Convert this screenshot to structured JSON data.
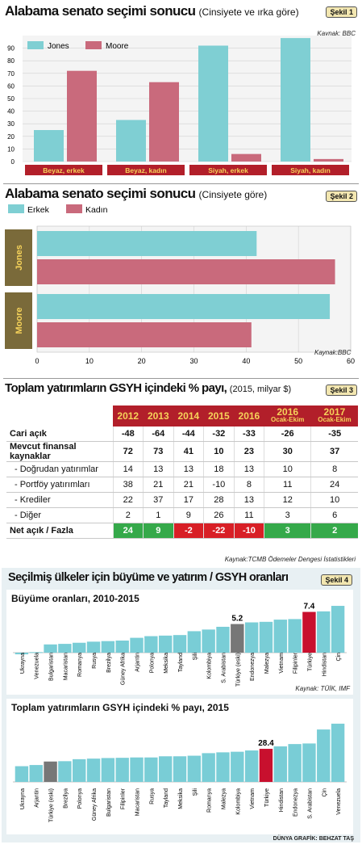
{
  "section1": {
    "title": "Alabama senato seçimi sonucu",
    "subtitle": "(Cinsiyete ve ırka göre)",
    "badge": "Şekil 1",
    "source": "Kaynak: BBC",
    "chart_data": {
      "type": "bar",
      "categories": [
        "Beyaz, erkek",
        "Beyaz, kadın",
        "Siyah, erkek",
        "Siyah, kadın"
      ],
      "series": [
        {
          "name": "Jones",
          "values": [
            25,
            33,
            92,
            98
          ],
          "color": "#7fcfd3"
        },
        {
          "name": "Moore",
          "values": [
            72,
            63,
            6,
            2
          ],
          "color": "#c96a7c"
        }
      ],
      "ylim": [
        0,
        100
      ],
      "yticks": [
        0,
        10,
        20,
        30,
        40,
        50,
        60,
        70,
        80,
        90
      ],
      "legend": "top-left"
    }
  },
  "section2": {
    "title": "Alabama senato seçimi sonucu",
    "subtitle": "(Cinsiyete göre)",
    "badge": "Şekil 2",
    "source": "Kaynak:BBC",
    "chart_data": {
      "type": "bar",
      "orientation": "horizontal",
      "categories": [
        "Jones",
        "Moore"
      ],
      "series": [
        {
          "name": "Erkek",
          "values": [
            42,
            56
          ],
          "color": "#7fcfd3"
        },
        {
          "name": "Kadın",
          "values": [
            57,
            41
          ],
          "color": "#c96a7c"
        }
      ],
      "xlim": [
        0,
        60
      ],
      "xticks": [
        0,
        10,
        20,
        30,
        40,
        50,
        60
      ],
      "legend": "top-left"
    }
  },
  "section3": {
    "title": "Toplam yatırımların GSYH içindeki % payı,",
    "subtitle": "(2015, milyar $)",
    "badge": "Şekil 3",
    "source": "Kaynak:TCMB Ödemeler Dengesi İstatistikleri",
    "chart_data": {
      "type": "table",
      "columns": [
        "2012",
        "2013",
        "2014",
        "2015",
        "2016",
        "2016",
        "2017"
      ],
      "column_notes": [
        "",
        "",
        "",
        "",
        "",
        "Ocak-Ekim",
        "Ocak-Ekim"
      ],
      "rows": [
        {
          "label": "Cari açık",
          "values": [
            "-48",
            "-64",
            "-44",
            "-32",
            "-33",
            "-26",
            "-35"
          ]
        },
        {
          "label": "Mevcut finansal kaynaklar",
          "values": [
            "72",
            "73",
            "41",
            "10",
            "23",
            "30",
            "37"
          ]
        },
        {
          "label": "- Doğrudan yatırımlar",
          "values": [
            "14",
            "13",
            "13",
            "18",
            "13",
            "10",
            "8"
          ]
        },
        {
          "label": "- Portföy yatırımları",
          "values": [
            "38",
            "21",
            "21",
            "-10",
            "8",
            "11",
            "24"
          ]
        },
        {
          "label": "- Krediler",
          "values": [
            "22",
            "37",
            "17",
            "28",
            "13",
            "12",
            "10"
          ]
        },
        {
          "label": "- Diğer",
          "values": [
            "2",
            "1",
            "9",
            "26",
            "11",
            "3",
            "6"
          ]
        },
        {
          "label": "Net açık / Fazla",
          "values": [
            "24",
            "9",
            "-2",
            "-22",
            "-10",
            "3",
            "2"
          ]
        }
      ]
    }
  },
  "section4": {
    "title": "Seçilmiş ülkeler için büyüme ve yatırım / GSYH oranları",
    "badge": "Şekil 4",
    "credit": "DÜNYA GRAFİK: BEHZAT TAŞ",
    "chart_data": [
      {
        "type": "bar",
        "title": "Büyüme oranları, 2010-2015",
        "source": "Kaynak: TÜİK, IMF",
        "categories": [
          "Ukrayna",
          "Venezuela",
          "Bulgaristan",
          "Macaristan",
          "Romanya",
          "Rusya",
          "Brezilya",
          "Güney Afrika",
          "Arjantin",
          "Polonya",
          "Meksika",
          "Tayland",
          "Şili",
          "Kolombiya",
          "S. Arabistan",
          "Türkiye (eski)",
          "Endonezya",
          "Malezya",
          "Vietnam",
          "Filipinler",
          "Türkiye",
          "Hindistan",
          "Çin"
        ],
        "values": [
          -0.3,
          0.1,
          1.5,
          1.6,
          1.8,
          2.0,
          2.1,
          2.2,
          2.7,
          3.0,
          3.1,
          3.2,
          3.9,
          4.2,
          4.7,
          5.2,
          5.5,
          5.6,
          6.0,
          6.1,
          7.4,
          7.5,
          8.5
        ],
        "highlight": {
          "Türkiye": "#c8102e",
          "Türkiye (eski)": "#777777"
        },
        "labels": {
          "Türkiye (eski)": "5.2",
          "Türkiye": "7.4"
        }
      },
      {
        "type": "bar",
        "title": "Toplam yatırımların GSYH içindeki % payı, 2015",
        "categories": [
          "Ukrayna",
          "Arjantin",
          "Türkiye (eski)",
          "Brezilya",
          "Polonya",
          "Güney Afrika",
          "Bulgaristan",
          "Filipinler",
          "Macaristan",
          "Rusya",
          "Tayland",
          "Meksika",
          "Şili",
          "Romanya",
          "Malezya",
          "Kolombiya",
          "Vietnam",
          "Türkiye",
          "Hindistan",
          "Endonezya",
          "S. Arabistan",
          "Çin",
          "Venezuela"
        ],
        "values": [
          13.5,
          14.5,
          17.5,
          17.8,
          19.5,
          20.0,
          20.5,
          20.7,
          21.0,
          21.0,
          22.0,
          22.0,
          22.5,
          24.7,
          25.4,
          25.9,
          27.0,
          28.4,
          30.5,
          32.5,
          33.0,
          45.0,
          50.0
        ],
        "highlight": {
          "Türkiye": "#c8102e",
          "Türkiye (eski)": "#777777"
        },
        "labels": {
          "Türkiye": "28.4"
        }
      }
    ]
  }
}
